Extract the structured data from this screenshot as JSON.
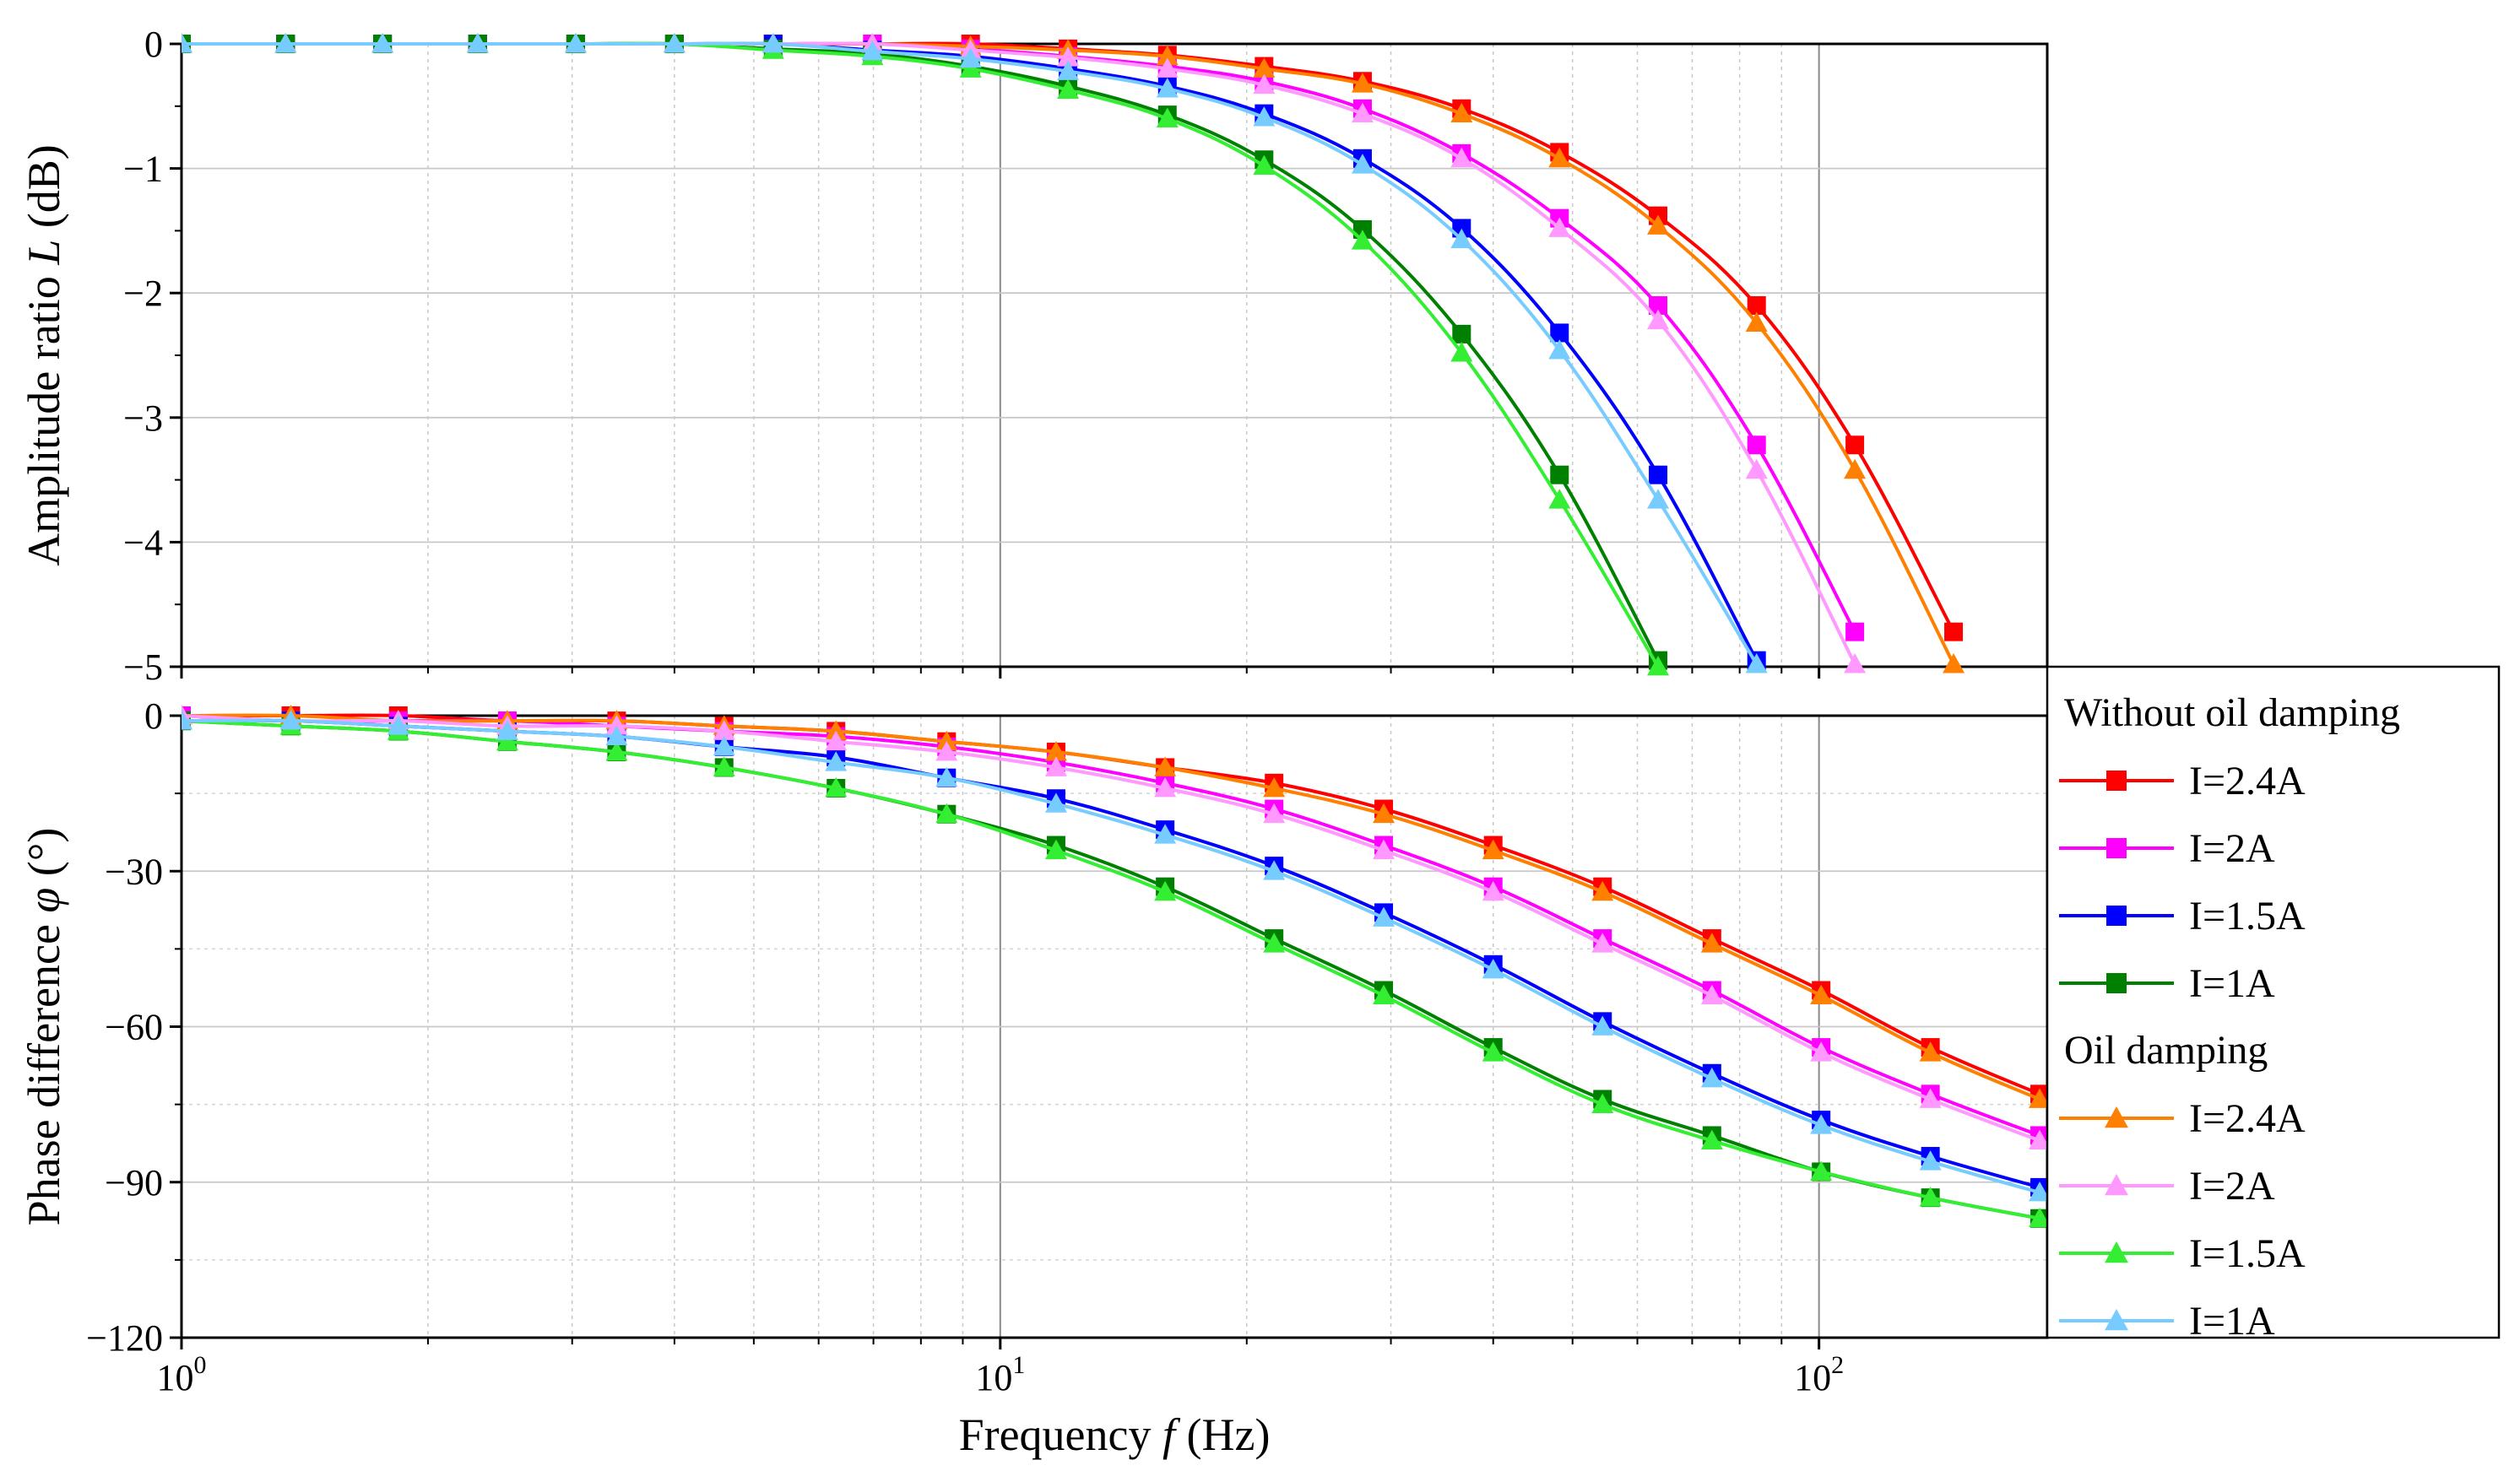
{
  "chart_data": [
    {
      "type": "line",
      "id": "amplitude",
      "title": "",
      "ylabel": "Amplitude ratio L (dB)",
      "ylabel_parts": {
        "pre": "Amplitude ratio ",
        "var": "L",
        "post": " (dB)"
      },
      "xscale": "log",
      "xlim": [
        1,
        190
      ],
      "ylim": [
        -5,
        0
      ],
      "yticks": [
        0,
        -1,
        -2,
        -3,
        -4,
        -5
      ],
      "ytick_labels": [
        "0",
        "−1",
        "−2",
        "−3",
        "−4",
        "−5"
      ],
      "series": [
        {
          "name": "Without oil damping I=2.4A",
          "color": "#ff0000",
          "marker": "square",
          "x": [
            1.0,
            1.34,
            1.76,
            2.3,
            3.03,
            4.0,
            5.28,
            6.98,
            9.2,
            12.1,
            16.0,
            21.0,
            27.7,
            36.6,
            48.2,
            63.6,
            83.9,
            110.6,
            146
          ],
          "y": [
            0,
            0,
            0,
            0,
            0,
            0,
            0,
            0,
            0,
            -0.04,
            -0.09,
            -0.18,
            -0.3,
            -0.52,
            -0.87,
            -1.38,
            -2.1,
            -3.22,
            -4.72
          ]
        },
        {
          "name": "Without oil damping I=2A",
          "color": "#ff00ff",
          "marker": "square",
          "x": [
            1.0,
            1.34,
            1.76,
            2.3,
            3.03,
            4.0,
            5.28,
            6.98,
            9.2,
            12.1,
            16.0,
            21.0,
            27.7,
            36.6,
            48.2,
            63.6,
            83.9,
            110.6
          ],
          "y": [
            0,
            0,
            0,
            0,
            0,
            0,
            0,
            0,
            -0.04,
            -0.1,
            -0.18,
            -0.3,
            -0.52,
            -0.88,
            -1.4,
            -2.1,
            -3.22,
            -4.72
          ]
        },
        {
          "name": "Without oil damping I=1.5A",
          "color": "#0000ff",
          "marker": "square",
          "x": [
            1.0,
            1.34,
            1.76,
            2.3,
            3.03,
            4.0,
            5.28,
            6.98,
            9.2,
            12.1,
            16.0,
            21.0,
            27.7,
            36.6,
            48.2,
            63.6,
            83.9
          ],
          "y": [
            0,
            0,
            0,
            0,
            0,
            0,
            0,
            -0.05,
            -0.1,
            -0.2,
            -0.34,
            -0.56,
            -0.92,
            -1.48,
            -2.32,
            -3.46,
            -4.95
          ]
        },
        {
          "name": "Without oil damping I=1A",
          "color": "#008000",
          "marker": "square",
          "x": [
            1.0,
            1.34,
            1.76,
            2.3,
            3.03,
            4.0,
            5.28,
            6.98,
            9.2,
            12.1,
            16.0,
            21.0,
            27.7,
            36.6,
            48.2,
            63.6
          ],
          "y": [
            0,
            0,
            0,
            0,
            0,
            0,
            -0.04,
            -0.08,
            -0.18,
            -0.34,
            -0.57,
            -0.93,
            -1.49,
            -2.33,
            -3.46,
            -4.95
          ]
        },
        {
          "name": "Oil damping I=2.4A",
          "color": "#ff7f00",
          "marker": "triangle",
          "x": [
            1.0,
            1.34,
            1.76,
            2.3,
            3.03,
            4.0,
            5.28,
            6.98,
            9.2,
            12.1,
            16.0,
            21.0,
            27.7,
            36.6,
            48.2,
            63.6,
            83.9,
            110.6,
            146
          ],
          "y": [
            0,
            0,
            0,
            0,
            0,
            0,
            0,
            0,
            -0.02,
            -0.05,
            -0.1,
            -0.2,
            -0.32,
            -0.56,
            -0.92,
            -1.46,
            -2.24,
            -3.42,
            -4.98
          ]
        },
        {
          "name": "Oil damping I=2A",
          "color": "#ff99ff",
          "marker": "triangle",
          "x": [
            1.0,
            1.34,
            1.76,
            2.3,
            3.03,
            4.0,
            5.28,
            6.98,
            9.2,
            12.1,
            16.0,
            21.0,
            27.7,
            36.6,
            48.2,
            63.6,
            83.9,
            110.6
          ],
          "y": [
            0,
            0,
            0,
            0,
            0,
            0,
            0,
            0,
            -0.05,
            -0.11,
            -0.2,
            -0.33,
            -0.56,
            -0.92,
            -1.48,
            -2.22,
            -3.42,
            -4.98
          ]
        },
        {
          "name": "Oil damping I=1.5A",
          "color": "#33ee33",
          "marker": "triangle",
          "x": [
            1.0,
            1.34,
            1.76,
            2.3,
            3.03,
            4.0,
            5.28,
            6.98,
            9.2,
            12.1,
            16.0,
            21.0,
            27.7,
            36.6,
            48.2,
            63.6
          ],
          "y": [
            0,
            0,
            0,
            0,
            0,
            0,
            -0.05,
            -0.1,
            -0.2,
            -0.37,
            -0.6,
            -0.98,
            -1.58,
            -2.48,
            -3.66,
            -5.0
          ]
        },
        {
          "name": "Oil damping I=1A",
          "color": "#77ccff",
          "marker": "triangle",
          "x": [
            1.0,
            1.34,
            1.76,
            2.3,
            3.03,
            4.0,
            5.28,
            6.98,
            9.2,
            12.1,
            16.0,
            21.0,
            27.7,
            36.6,
            48.2,
            63.6,
            83.9
          ],
          "y": [
            0,
            0,
            0,
            0,
            0,
            0,
            0,
            -0.06,
            -0.12,
            -0.22,
            -0.36,
            -0.59,
            -0.97,
            -1.57,
            -2.46,
            -3.66,
            -4.98
          ]
        }
      ]
    },
    {
      "type": "line",
      "id": "phase",
      "title": "",
      "xlabel": "Frequency f (Hz)",
      "xlabel_parts": {
        "pre": "Frequency ",
        "var": "f",
        "post": " (Hz)"
      },
      "ylabel": "Phase difference φ (°)",
      "ylabel_parts": {
        "pre": "Phase difference ",
        "var": "φ",
        "post": " (°)"
      },
      "xscale": "log",
      "xlim": [
        1,
        190
      ],
      "ylim": [
        -120,
        0
      ],
      "xticks": [
        1,
        10,
        100
      ],
      "xtick_labels": [
        {
          "base": "10",
          "exp": "0"
        },
        {
          "base": "10",
          "exp": "1"
        },
        {
          "base": "10",
          "exp": "2"
        }
      ],
      "yticks": [
        0,
        -30,
        -60,
        -90,
        -120
      ],
      "ytick_labels": [
        "0",
        "−30",
        "−60",
        "−90",
        "−120"
      ],
      "series": [
        {
          "name": "Without oil damping I=2.4A",
          "color": "#ff0000",
          "marker": "square",
          "x": [
            1.0,
            1.36,
            1.84,
            2.5,
            3.4,
            4.6,
            6.3,
            8.6,
            11.7,
            15.9,
            21.6,
            29.4,
            40.0,
            54.4,
            74.0,
            100.6,
            136.8,
            186
          ],
          "y": [
            0,
            0,
            0,
            -1,
            -1,
            -2,
            -3,
            -5,
            -7,
            -10,
            -13,
            -18,
            -25,
            -33,
            -43,
            -53,
            -64,
            -73
          ]
        },
        {
          "name": "Without oil damping I=2A",
          "color": "#ff00ff",
          "marker": "square",
          "x": [
            1.0,
            1.36,
            1.84,
            2.5,
            3.4,
            4.6,
            6.3,
            8.6,
            11.7,
            15.9,
            21.6,
            29.4,
            40.0,
            54.4,
            74.0,
            100.6,
            136.8,
            186
          ],
          "y": [
            0,
            -1,
            -1,
            -1,
            -2,
            -3,
            -4,
            -6,
            -9,
            -13,
            -18,
            -25,
            -33,
            -43,
            -53,
            -64,
            -73,
            -81
          ]
        },
        {
          "name": "Without oil damping I=1.5A",
          "color": "#0000ff",
          "marker": "square",
          "x": [
            1.0,
            1.36,
            1.84,
            2.5,
            3.4,
            4.6,
            6.3,
            8.6,
            11.7,
            15.9,
            21.6,
            29.4,
            40.0,
            54.4,
            74.0,
            100.6,
            136.8,
            186
          ],
          "y": [
            -1,
            -1,
            -2,
            -3,
            -4,
            -6,
            -8,
            -12,
            -16,
            -22,
            -29,
            -38,
            -48,
            -59,
            -69,
            -78,
            -85,
            -91
          ]
        },
        {
          "name": "Without oil damping I=1A",
          "color": "#008000",
          "marker": "square",
          "x": [
            1.0,
            1.36,
            1.84,
            2.5,
            3.4,
            4.6,
            6.3,
            8.6,
            11.7,
            15.9,
            21.6,
            29.4,
            40.0,
            54.4,
            74.0,
            100.6,
            136.8,
            186
          ],
          "y": [
            -1,
            -2,
            -3,
            -5,
            -7,
            -10,
            -14,
            -19,
            -25,
            -33,
            -43,
            -53,
            -64,
            -74,
            -81,
            -88,
            -93,
            -97
          ]
        },
        {
          "name": "Oil damping I=2.4A",
          "color": "#ff7f00",
          "marker": "triangle",
          "x": [
            1.0,
            1.36,
            1.84,
            2.5,
            3.4,
            4.6,
            6.3,
            8.6,
            11.7,
            15.9,
            21.6,
            29.4,
            40.0,
            54.4,
            74.0,
            100.6,
            136.8,
            186
          ],
          "y": [
            0,
            0,
            -1,
            -1,
            -1,
            -2,
            -3,
            -5,
            -7,
            -10,
            -14,
            -19,
            -26,
            -34,
            -44,
            -54,
            -65,
            -74
          ]
        },
        {
          "name": "Oil damping I=2A",
          "color": "#ff99ff",
          "marker": "triangle",
          "x": [
            1.0,
            1.36,
            1.84,
            2.5,
            3.4,
            4.6,
            6.3,
            8.6,
            11.7,
            15.9,
            21.6,
            29.4,
            40.0,
            54.4,
            74.0,
            100.6,
            136.8,
            186
          ],
          "y": [
            0,
            -1,
            -1,
            -2,
            -2,
            -3,
            -5,
            -7,
            -10,
            -14,
            -19,
            -26,
            -34,
            -44,
            -54,
            -65,
            -74,
            -82
          ]
        },
        {
          "name": "Oil damping I=1.5A",
          "color": "#33ee33",
          "marker": "triangle",
          "x": [
            1.0,
            1.36,
            1.84,
            2.5,
            3.4,
            4.6,
            6.3,
            8.6,
            11.7,
            15.9,
            21.6,
            29.4,
            40.0,
            54.4,
            74.0,
            100.6,
            136.8,
            186
          ],
          "y": [
            -1,
            -2,
            -3,
            -5,
            -7,
            -10,
            -14,
            -19,
            -26,
            -34,
            -44,
            -54,
            -65,
            -75,
            -82,
            -88,
            -93,
            -97
          ]
        },
        {
          "name": "Oil damping I=1A",
          "color": "#77ccff",
          "marker": "triangle",
          "x": [
            1.0,
            1.36,
            1.84,
            2.5,
            3.4,
            4.6,
            6.3,
            8.6,
            11.7,
            15.9,
            21.6,
            29.4,
            40.0,
            54.4,
            74.0,
            100.6,
            136.8,
            186
          ],
          "y": [
            -1,
            -1,
            -2,
            -3,
            -4,
            -6,
            -9,
            -12,
            -17,
            -23,
            -30,
            -39,
            -49,
            -60,
            -70,
            -79,
            -86,
            -92
          ]
        }
      ]
    }
  ],
  "legend": {
    "placement": "right",
    "groups": [
      {
        "title": "Without oil damping",
        "items": [
          {
            "label": "I=2.4A",
            "color": "#ff0000",
            "marker": "square"
          },
          {
            "label": "I=2A",
            "color": "#ff00ff",
            "marker": "square"
          },
          {
            "label": "I=1.5A",
            "color": "#0000ff",
            "marker": "square"
          },
          {
            "label": "I=1A",
            "color": "#008000",
            "marker": "square"
          }
        ]
      },
      {
        "title": "Oil damping",
        "items": [
          {
            "label": "I=2.4A",
            "color": "#ff7f00",
            "marker": "triangle"
          },
          {
            "label": "I=2A",
            "color": "#ff99ff",
            "marker": "triangle"
          },
          {
            "label": "I=1.5A",
            "color": "#33ee33",
            "marker": "triangle"
          },
          {
            "label": "I=1A",
            "color": "#77ccff",
            "marker": "triangle"
          }
        ]
      }
    ]
  }
}
